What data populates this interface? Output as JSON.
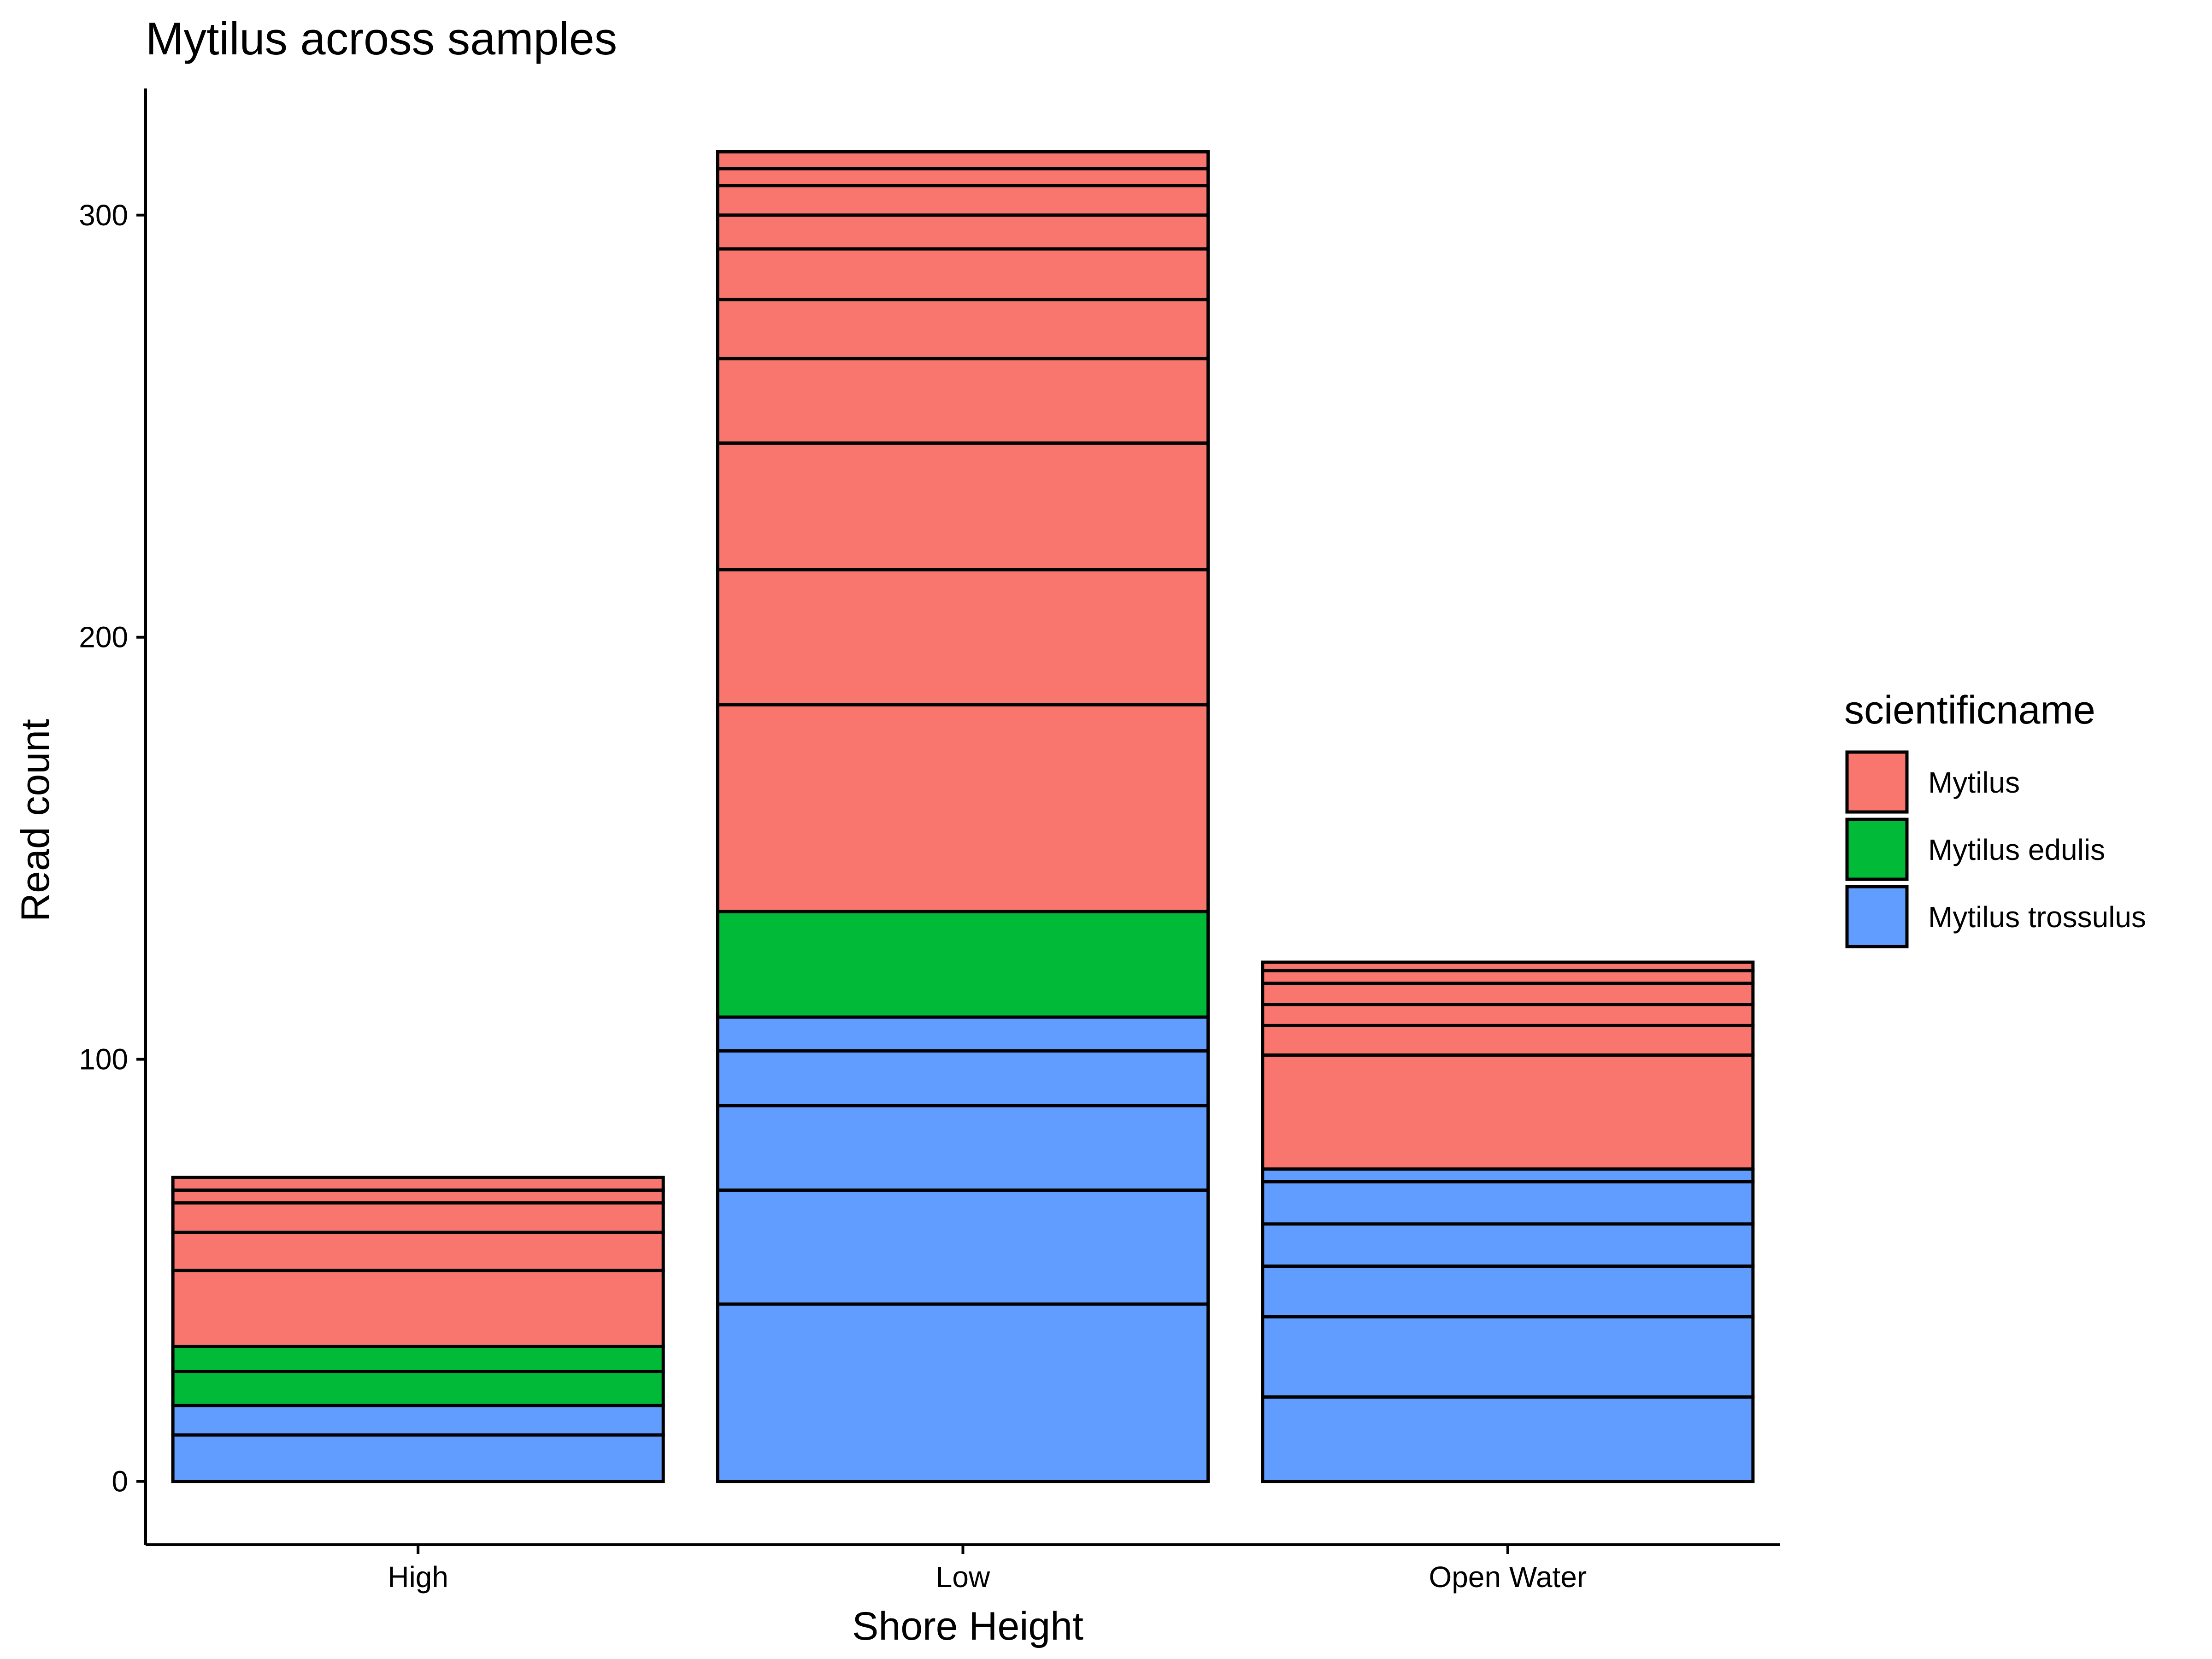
{
  "chart_data": {
    "type": "bar",
    "stacked": true,
    "title": "Mytilus across samples",
    "xlabel": "Shore Height",
    "ylabel": "Read count",
    "ylim": [
      -15,
      330
    ],
    "yticks": [
      0,
      100,
      200,
      300
    ],
    "categories": [
      "High",
      "Low",
      "Open Water"
    ],
    "grid": false,
    "legend": {
      "title": "scientificname",
      "position": "right",
      "items": [
        {
          "name": "Mytilus",
          "color": "#F8766D"
        },
        {
          "name": "Mytilus edulis",
          "color": "#00BA38"
        },
        {
          "name": "Mytilus trossulus",
          "color": "#619CFF"
        }
      ]
    },
    "stacks": [
      {
        "category": "High",
        "segments": [
          {
            "series": "Mytilus trossulus",
            "value": 11
          },
          {
            "series": "Mytilus trossulus",
            "value": 7
          },
          {
            "series": "Mytilus edulis",
            "value": 8
          },
          {
            "series": "Mytilus edulis",
            "value": 6
          },
          {
            "series": "Mytilus",
            "value": 18
          },
          {
            "series": "Mytilus",
            "value": 9
          },
          {
            "series": "Mytilus",
            "value": 7
          },
          {
            "series": "Mytilus",
            "value": 3
          },
          {
            "series": "Mytilus",
            "value": 3
          }
        ]
      },
      {
        "category": "Low",
        "segments": [
          {
            "series": "Mytilus trossulus",
            "value": 42
          },
          {
            "series": "Mytilus trossulus",
            "value": 27
          },
          {
            "series": "Mytilus trossulus",
            "value": 20
          },
          {
            "series": "Mytilus trossulus",
            "value": 13
          },
          {
            "series": "Mytilus trossulus",
            "value": 8
          },
          {
            "series": "Mytilus edulis",
            "value": 25
          },
          {
            "series": "Mytilus",
            "value": 49
          },
          {
            "series": "Mytilus",
            "value": 32
          },
          {
            "series": "Mytilus",
            "value": 30
          },
          {
            "series": "Mytilus",
            "value": 20
          },
          {
            "series": "Mytilus",
            "value": 14
          },
          {
            "series": "Mytilus",
            "value": 12
          },
          {
            "series": "Mytilus",
            "value": 8
          },
          {
            "series": "Mytilus",
            "value": 7
          },
          {
            "series": "Mytilus",
            "value": 4
          },
          {
            "series": "Mytilus",
            "value": 4
          }
        ]
      },
      {
        "category": "Open Water",
        "segments": [
          {
            "series": "Mytilus trossulus",
            "value": 20
          },
          {
            "series": "Mytilus trossulus",
            "value": 19
          },
          {
            "series": "Mytilus trossulus",
            "value": 12
          },
          {
            "series": "Mytilus trossulus",
            "value": 10
          },
          {
            "series": "Mytilus trossulus",
            "value": 10
          },
          {
            "series": "Mytilus trossulus",
            "value": 3
          },
          {
            "series": "Mytilus",
            "value": 27
          },
          {
            "series": "Mytilus",
            "value": 7
          },
          {
            "series": "Mytilus",
            "value": 5
          },
          {
            "series": "Mytilus",
            "value": 5
          },
          {
            "series": "Mytilus",
            "value": 3
          },
          {
            "series": "Mytilus",
            "value": 2
          }
        ]
      }
    ]
  }
}
